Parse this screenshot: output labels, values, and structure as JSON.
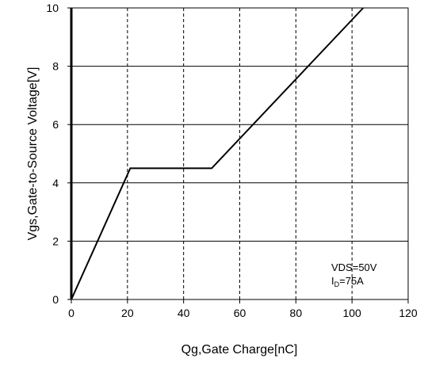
{
  "chart_data": {
    "type": "line",
    "title": "",
    "xlabel": "Qg,Gate Charge[nC]",
    "ylabel": "Vgs,Gate-to-Source Voltage[V]",
    "xlim": [
      0,
      120
    ],
    "ylim": [
      0,
      10
    ],
    "x_ticks": [
      0,
      20,
      40,
      60,
      80,
      100,
      120
    ],
    "y_ticks": [
      0,
      2,
      4,
      6,
      8,
      10
    ],
    "x_tick_labels": [
      "0",
      "20",
      "40",
      "60",
      "80",
      "100",
      "120"
    ],
    "y_tick_labels": [
      "0",
      "2",
      "4",
      "6",
      "8",
      "10"
    ],
    "grid": {
      "x": "dashed",
      "y": "solid"
    },
    "series": [
      {
        "x": [
          0,
          21,
          50,
          104
        ],
        "y": [
          0,
          4.5,
          4.5,
          10
        ],
        "color": "#000000"
      }
    ],
    "annotations": {
      "line1": "VDS=50V",
      "line2_main": "I",
      "line2_sub": "D",
      "line2_rest": "=75A"
    }
  }
}
